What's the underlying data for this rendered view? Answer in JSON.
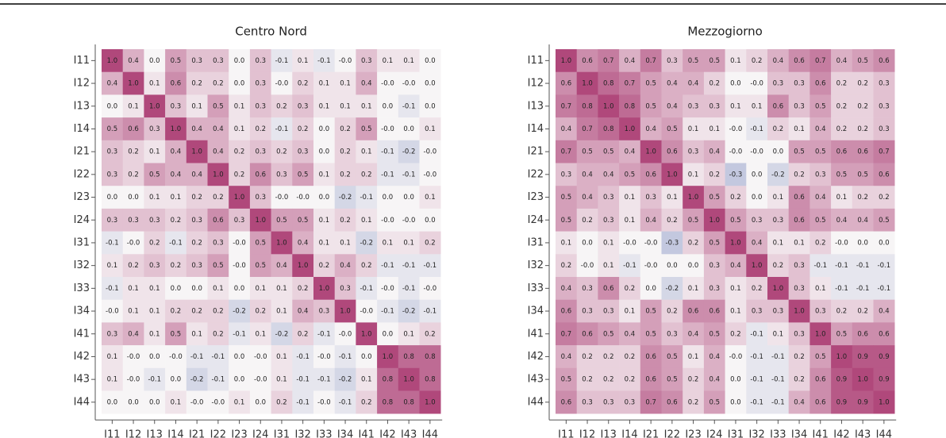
{
  "chart_data": [
    {
      "type": "heatmap",
      "title": "Centro Nord",
      "categories": [
        "I11",
        "I12",
        "I13",
        "I14",
        "I21",
        "I22",
        "I23",
        "I24",
        "I31",
        "I32",
        "I33",
        "I34",
        "I41",
        "I42",
        "I43",
        "I44"
      ],
      "clim": [
        -1,
        1
      ],
      "colors": {
        "low": "#4a5fa8",
        "mid": "#f7f5f6",
        "high": "#b0487b"
      },
      "values": [
        [
          1.0,
          0.4,
          0.0,
          0.5,
          0.3,
          0.3,
          0.0,
          0.3,
          -0.1,
          0.1,
          -0.1,
          -0.0,
          0.3,
          0.1,
          0.1,
          0.0
        ],
        [
          0.4,
          1.0,
          0.1,
          0.6,
          0.2,
          0.2,
          0.0,
          0.3,
          -0.0,
          0.2,
          0.1,
          0.1,
          0.4,
          -0.0,
          -0.0,
          0.0
        ],
        [
          0.0,
          0.1,
          1.0,
          0.3,
          0.1,
          0.5,
          0.1,
          0.3,
          0.2,
          0.3,
          0.1,
          0.1,
          0.1,
          0.0,
          -0.1,
          0.0
        ],
        [
          0.5,
          0.6,
          0.3,
          1.0,
          0.4,
          0.4,
          0.1,
          0.2,
          -0.1,
          0.2,
          0.0,
          0.2,
          0.5,
          -0.0,
          0.0,
          0.1
        ],
        [
          0.3,
          0.2,
          0.1,
          0.4,
          1.0,
          0.4,
          0.2,
          0.3,
          0.2,
          0.3,
          0.0,
          0.2,
          0.1,
          -0.1,
          -0.2,
          -0.0
        ],
        [
          0.3,
          0.2,
          0.5,
          0.4,
          0.4,
          1.0,
          0.2,
          0.6,
          0.3,
          0.5,
          0.1,
          0.2,
          0.2,
          -0.1,
          -0.1,
          -0.0
        ],
        [
          0.0,
          0.0,
          0.1,
          0.1,
          0.2,
          0.2,
          1.0,
          0.3,
          -0.0,
          -0.0,
          0.0,
          -0.2,
          -0.1,
          0.0,
          0.0,
          0.1
        ],
        [
          0.3,
          0.3,
          0.3,
          0.2,
          0.3,
          0.6,
          0.3,
          1.0,
          0.5,
          0.5,
          0.1,
          0.2,
          0.1,
          -0.0,
          -0.0,
          0.0
        ],
        [
          -0.1,
          -0.0,
          0.2,
          -0.1,
          0.2,
          0.3,
          -0.0,
          0.5,
          1.0,
          0.4,
          0.1,
          0.1,
          -0.2,
          0.1,
          0.1,
          0.2
        ],
        [
          0.1,
          0.2,
          0.3,
          0.2,
          0.3,
          0.5,
          -0.0,
          0.5,
          0.4,
          1.0,
          0.2,
          0.4,
          0.2,
          -0.1,
          -0.1,
          -0.1
        ],
        [
          -0.1,
          0.1,
          0.1,
          0.0,
          0.0,
          0.1,
          0.0,
          0.1,
          0.1,
          0.2,
          1.0,
          0.3,
          -0.1,
          -0.0,
          -0.1,
          -0.0
        ],
        [
          -0.0,
          0.1,
          0.1,
          0.2,
          0.2,
          0.2,
          -0.2,
          0.2,
          0.1,
          0.4,
          0.3,
          1.0,
          -0.0,
          -0.1,
          -0.2,
          -0.1
        ],
        [
          0.3,
          0.4,
          0.1,
          0.5,
          0.1,
          0.2,
          -0.1,
          0.1,
          -0.2,
          0.2,
          -0.1,
          -0.0,
          1.0,
          0.0,
          0.1,
          0.2
        ],
        [
          0.1,
          -0.0,
          0.0,
          -0.0,
          -0.1,
          -0.1,
          0.0,
          -0.0,
          0.1,
          -0.1,
          -0.0,
          -0.1,
          0.0,
          1.0,
          0.8,
          0.8
        ],
        [
          0.1,
          -0.0,
          -0.1,
          0.0,
          -0.2,
          -0.1,
          0.0,
          -0.0,
          0.1,
          -0.1,
          -0.1,
          -0.2,
          0.1,
          0.8,
          1.0,
          0.8
        ],
        [
          0.0,
          0.0,
          0.0,
          0.1,
          -0.0,
          -0.0,
          0.1,
          0.0,
          0.2,
          -0.1,
          -0.0,
          -0.1,
          0.2,
          0.8,
          0.8,
          1.0
        ]
      ],
      "value_labels": [
        [
          "1.0",
          "0.4",
          "0.0",
          "0.5",
          "0.3",
          "0.3",
          "0.0",
          "0.3",
          "-0.1",
          "0.1",
          "-0.1",
          "-0.0",
          "0.3",
          "0.1",
          "0.1",
          "0.0"
        ],
        [
          "0.4",
          "1.0",
          "0.1",
          "0.6",
          "0.2",
          "0.2",
          "0.0",
          "0.3",
          "-0.0",
          "0.2",
          "0.1",
          "0.1",
          "0.4",
          "-0.0",
          "-0.0",
          "0.0"
        ],
        [
          "0.0",
          "0.1",
          "1.0",
          "0.3",
          "0.1",
          "0.5",
          "0.1",
          "0.3",
          "0.2",
          "0.3",
          "0.1",
          "0.1",
          "0.1",
          "0.0",
          "-0.1",
          "0.0"
        ],
        [
          "0.5",
          "0.6",
          "0.3",
          "1.0",
          "0.4",
          "0.4",
          "0.1",
          "0.2",
          "-0.1",
          "0.2",
          "0.0",
          "0.2",
          "0.5",
          "-0.0",
          "0.0",
          "0.1"
        ],
        [
          "0.3",
          "0.2",
          "0.1",
          "0.4",
          "1.0",
          "0.4",
          "0.2",
          "0.3",
          "0.2",
          "0.3",
          "0.0",
          "0.2",
          "0.1",
          "-0.1",
          "-0.2",
          "-0.0"
        ],
        [
          "0.3",
          "0.2",
          "0.5",
          "0.4",
          "0.4",
          "1.0",
          "0.2",
          "0.6",
          "0.3",
          "0.5",
          "0.1",
          "0.2",
          "0.2",
          "-0.1",
          "-0.1",
          "-0.0"
        ],
        [
          "0.0",
          "0.0",
          "0.1",
          "0.1",
          "0.2",
          "0.2",
          "1.0",
          "0.3",
          "-0.0",
          "-0.0",
          "0.0",
          "-0.2",
          "-0.1",
          "0.0",
          "0.0",
          "0.1"
        ],
        [
          "0.3",
          "0.3",
          "0.3",
          "0.2",
          "0.3",
          "0.6",
          "0.3",
          "1.0",
          "0.5",
          "0.5",
          "0.1",
          "0.2",
          "0.1",
          "-0.0",
          "-0.0",
          "0.0"
        ],
        [
          "-0.1",
          "-0.0",
          "0.2",
          "-0.1",
          "0.2",
          "0.3",
          "-0.0",
          "0.5",
          "1.0",
          "0.4",
          "0.1",
          "0.1",
          "-0.2",
          "0.1",
          "0.1",
          "0.2"
        ],
        [
          "0.1",
          "0.2",
          "0.3",
          "0.2",
          "0.3",
          "0.5",
          "-0.0",
          "0.5",
          "0.4",
          "1.0",
          "0.2",
          "0.4",
          "0.2",
          "-0.1",
          "-0.1",
          "-0.1"
        ],
        [
          "-0.1",
          "0.1",
          "0.1",
          "0.0",
          "0.0",
          "0.1",
          "0.0",
          "0.1",
          "0.1",
          "0.2",
          "1.0",
          "0.3",
          "-0.1",
          "-0.0",
          "-0.1",
          "-0.0"
        ],
        [
          "-0.0",
          "0.1",
          "0.1",
          "0.2",
          "0.2",
          "0.2",
          "-0.2",
          "0.2",
          "0.1",
          "0.4",
          "0.3",
          "1.0",
          "-0.0",
          "-0.1",
          "-0.2",
          "-0.1"
        ],
        [
          "0.3",
          "0.4",
          "0.1",
          "0.5",
          "0.1",
          "0.2",
          "-0.1",
          "0.1",
          "-0.2",
          "0.2",
          "-0.1",
          "-0.0",
          "1.0",
          "0.0",
          "0.1",
          "0.2"
        ],
        [
          "0.1",
          "-0.0",
          "0.0",
          "-0.0",
          "-0.1",
          "-0.1",
          "0.0",
          "-0.0",
          "0.1",
          "-0.1",
          "-0.0",
          "-0.1",
          "0.0",
          "1.0",
          "0.8",
          "0.8"
        ],
        [
          "0.1",
          "-0.0",
          "-0.1",
          "0.0",
          "-0.2",
          "-0.1",
          "0.0",
          "-0.0",
          "0.1",
          "-0.1",
          "-0.1",
          "-0.2",
          "0.1",
          "0.8",
          "1.0",
          "0.8"
        ],
        [
          "0.0",
          "0.0",
          "0.0",
          "0.1",
          "-0.0",
          "-0.0",
          "0.1",
          "0.0",
          "0.2",
          "-0.1",
          "-0.0",
          "-0.1",
          "0.2",
          "0.8",
          "0.8",
          "1.0"
        ]
      ]
    },
    {
      "type": "heatmap",
      "title": "Mezzogiorno",
      "categories": [
        "I11",
        "I12",
        "I13",
        "I14",
        "I21",
        "I22",
        "I23",
        "I24",
        "I31",
        "I32",
        "I33",
        "I34",
        "I41",
        "I42",
        "I43",
        "I44"
      ],
      "clim": [
        -1,
        1
      ],
      "colors": {
        "low": "#4a5fa8",
        "mid": "#f7f5f6",
        "high": "#b0487b"
      },
      "values": [
        [
          1.0,
          0.6,
          0.7,
          0.4,
          0.7,
          0.3,
          0.5,
          0.5,
          0.1,
          0.2,
          0.4,
          0.6,
          0.7,
          0.4,
          0.5,
          0.6
        ],
        [
          0.6,
          1.0,
          0.8,
          0.7,
          0.5,
          0.4,
          0.4,
          0.2,
          0.0,
          -0.0,
          0.3,
          0.3,
          0.6,
          0.2,
          0.2,
          0.3
        ],
        [
          0.7,
          0.8,
          1.0,
          0.8,
          0.5,
          0.4,
          0.3,
          0.3,
          0.1,
          0.1,
          0.6,
          0.3,
          0.5,
          0.2,
          0.2,
          0.3
        ],
        [
          0.4,
          0.7,
          0.8,
          1.0,
          0.4,
          0.5,
          0.1,
          0.1,
          -0.0,
          -0.1,
          0.2,
          0.1,
          0.4,
          0.2,
          0.2,
          0.3
        ],
        [
          0.7,
          0.5,
          0.5,
          0.4,
          1.0,
          0.6,
          0.3,
          0.4,
          -0.0,
          -0.0,
          0.0,
          0.5,
          0.5,
          0.6,
          0.6,
          0.7
        ],
        [
          0.3,
          0.4,
          0.4,
          0.5,
          0.6,
          1.0,
          0.1,
          0.2,
          -0.3,
          0.0,
          -0.2,
          0.2,
          0.3,
          0.5,
          0.5,
          0.6
        ],
        [
          0.5,
          0.4,
          0.3,
          0.1,
          0.3,
          0.1,
          1.0,
          0.5,
          0.2,
          0.0,
          0.1,
          0.6,
          0.4,
          0.1,
          0.2,
          0.2
        ],
        [
          0.5,
          0.2,
          0.3,
          0.1,
          0.4,
          0.2,
          0.5,
          1.0,
          0.5,
          0.3,
          0.3,
          0.6,
          0.5,
          0.4,
          0.4,
          0.5
        ],
        [
          0.1,
          0.0,
          0.1,
          -0.0,
          -0.0,
          -0.3,
          0.2,
          0.5,
          1.0,
          0.4,
          0.1,
          0.1,
          0.2,
          -0.0,
          0.0,
          0.0
        ],
        [
          0.2,
          -0.0,
          0.1,
          -0.1,
          -0.0,
          0.0,
          0.0,
          0.3,
          0.4,
          1.0,
          0.2,
          0.3,
          -0.1,
          -0.1,
          -0.1,
          -0.1
        ],
        [
          0.4,
          0.3,
          0.6,
          0.2,
          0.0,
          -0.2,
          0.1,
          0.3,
          0.1,
          0.2,
          1.0,
          0.3,
          0.1,
          -0.1,
          -0.1,
          -0.1
        ],
        [
          0.6,
          0.3,
          0.3,
          0.1,
          0.5,
          0.2,
          0.6,
          0.6,
          0.1,
          0.3,
          0.3,
          1.0,
          0.3,
          0.2,
          0.2,
          0.4
        ],
        [
          0.7,
          0.6,
          0.5,
          0.4,
          0.5,
          0.3,
          0.4,
          0.5,
          0.2,
          -0.1,
          0.1,
          0.3,
          1.0,
          0.5,
          0.6,
          0.6
        ],
        [
          0.4,
          0.2,
          0.2,
          0.2,
          0.6,
          0.5,
          0.1,
          0.4,
          -0.0,
          -0.1,
          -0.1,
          0.2,
          0.5,
          1.0,
          0.9,
          0.9
        ],
        [
          0.5,
          0.2,
          0.2,
          0.2,
          0.6,
          0.5,
          0.2,
          0.4,
          0.0,
          -0.1,
          -0.1,
          0.2,
          0.6,
          0.9,
          1.0,
          0.9
        ],
        [
          0.6,
          0.3,
          0.3,
          0.3,
          0.7,
          0.6,
          0.2,
          0.5,
          0.0,
          -0.1,
          -0.1,
          0.4,
          0.6,
          0.9,
          0.9,
          1.0
        ]
      ],
      "value_labels": [
        [
          "1.0",
          "0.6",
          "0.7",
          "0.4",
          "0.7",
          "0.3",
          "0.5",
          "0.5",
          "0.1",
          "0.2",
          "0.4",
          "0.6",
          "0.7",
          "0.4",
          "0.5",
          "0.6"
        ],
        [
          "0.6",
          "1.0",
          "0.8",
          "0.7",
          "0.5",
          "0.4",
          "0.4",
          "0.2",
          "0.0",
          "-0.0",
          "0.3",
          "0.3",
          "0.6",
          "0.2",
          "0.2",
          "0.3"
        ],
        [
          "0.7",
          "0.8",
          "1.0",
          "0.8",
          "0.5",
          "0.4",
          "0.3",
          "0.3",
          "0.1",
          "0.1",
          "0.6",
          "0.3",
          "0.5",
          "0.2",
          "0.2",
          "0.3"
        ],
        [
          "0.4",
          "0.7",
          "0.8",
          "1.0",
          "0.4",
          "0.5",
          "0.1",
          "0.1",
          "-0.0",
          "-0.1",
          "0.2",
          "0.1",
          "0.4",
          "0.2",
          "0.2",
          "0.3"
        ],
        [
          "0.7",
          "0.5",
          "0.5",
          "0.4",
          "1.0",
          "0.6",
          "0.3",
          "0.4",
          "-0.0",
          "-0.0",
          "0.0",
          "0.5",
          "0.5",
          "0.6",
          "0.6",
          "0.7"
        ],
        [
          "0.3",
          "0.4",
          "0.4",
          "0.5",
          "0.6",
          "1.0",
          "0.1",
          "0.2",
          "-0.3",
          "0.0",
          "-0.2",
          "0.2",
          "0.3",
          "0.5",
          "0.5",
          "0.6"
        ],
        [
          "0.5",
          "0.4",
          "0.3",
          "0.1",
          "0.3",
          "0.1",
          "1.0",
          "0.5",
          "0.2",
          "0.0",
          "0.1",
          "0.6",
          "0.4",
          "0.1",
          "0.2",
          "0.2"
        ],
        [
          "0.5",
          "0.2",
          "0.3",
          "0.1",
          "0.4",
          "0.2",
          "0.5",
          "1.0",
          "0.5",
          "0.3",
          "0.3",
          "0.6",
          "0.5",
          "0.4",
          "0.4",
          "0.5"
        ],
        [
          "0.1",
          "0.0",
          "0.1",
          "-0.0",
          "-0.0",
          "-0.3",
          "0.2",
          "0.5",
          "1.0",
          "0.4",
          "0.1",
          "0.1",
          "0.2",
          "-0.0",
          "0.0",
          "0.0"
        ],
        [
          "0.2",
          "-0.0",
          "0.1",
          "-0.1",
          "-0.0",
          "0.0",
          "0.0",
          "0.3",
          "0.4",
          "1.0",
          "0.2",
          "0.3",
          "-0.1",
          "-0.1",
          "-0.1",
          "-0.1"
        ],
        [
          "0.4",
          "0.3",
          "0.6",
          "0.2",
          "0.0",
          "-0.2",
          "0.1",
          "0.3",
          "0.1",
          "0.2",
          "1.0",
          "0.3",
          "0.1",
          "-0.1",
          "-0.1",
          "-0.1"
        ],
        [
          "0.6",
          "0.3",
          "0.3",
          "0.1",
          "0.5",
          "0.2",
          "0.6",
          "0.6",
          "0.1",
          "0.3",
          "0.3",
          "1.0",
          "0.3",
          "0.2",
          "0.2",
          "0.4"
        ],
        [
          "0.7",
          "0.6",
          "0.5",
          "0.4",
          "0.5",
          "0.3",
          "0.4",
          "0.5",
          "0.2",
          "-0.1",
          "0.1",
          "0.3",
          "1.0",
          "0.5",
          "0.6",
          "0.6"
        ],
        [
          "0.4",
          "0.2",
          "0.2",
          "0.2",
          "0.6",
          "0.5",
          "0.1",
          "0.4",
          "-0.0",
          "-0.1",
          "-0.1",
          "0.2",
          "0.5",
          "1.0",
          "0.9",
          "0.9"
        ],
        [
          "0.5",
          "0.2",
          "0.2",
          "0.2",
          "0.6",
          "0.5",
          "0.2",
          "0.4",
          "0.0",
          "-0.1",
          "-0.1",
          "0.2",
          "0.6",
          "0.9",
          "1.0",
          "0.9"
        ],
        [
          "0.6",
          "0.3",
          "0.3",
          "0.3",
          "0.7",
          "0.6",
          "0.2",
          "0.5",
          "0.0",
          "-0.1",
          "-0.1",
          "0.4",
          "0.6",
          "0.9",
          "0.9",
          "1.0"
        ]
      ]
    }
  ]
}
